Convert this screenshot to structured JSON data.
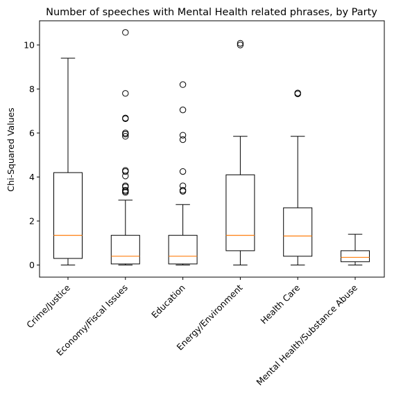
{
  "chart_data": {
    "type": "boxplot",
    "title": "Number of speeches with Mental Health related phrases, by Party",
    "xlabel": "",
    "ylabel": "Chi-Squared Values",
    "ylim": [
      -0.55,
      11.1
    ],
    "yticks": [
      0,
      2,
      4,
      6,
      8,
      10
    ],
    "grid": false,
    "legend": "none",
    "categories": [
      "Crime/Justice",
      "Economy/Fiscal Issues",
      "Education",
      "Energy/Environment",
      "Health Care",
      "Mental Health/Substance Abuse"
    ],
    "boxes": [
      {
        "category": "Crime/Justice",
        "whisker_low": 0.0,
        "q1": 0.3,
        "median": 1.35,
        "q3": 4.2,
        "whisker_high": 9.4,
        "outliers": []
      },
      {
        "category": "Economy/Fiscal Issues",
        "whisker_low": 0.0,
        "q1": 0.05,
        "median": 0.4,
        "q3": 1.35,
        "whisker_high": 2.95,
        "outliers": [
          3.3,
          3.35,
          3.4,
          3.55,
          3.6,
          4.05,
          4.25,
          4.3,
          5.85,
          5.95,
          6.0,
          6.65,
          6.68,
          7.8,
          10.57
        ]
      },
      {
        "category": "Education",
        "whisker_low": 0.0,
        "q1": 0.05,
        "median": 0.4,
        "q3": 1.35,
        "whisker_high": 2.75,
        "outliers": [
          3.35,
          3.4,
          3.6,
          4.25,
          5.7,
          5.9,
          7.05,
          8.2
        ]
      },
      {
        "category": "Energy/Environment",
        "whisker_low": 0.0,
        "q1": 0.65,
        "median": 1.35,
        "q3": 4.1,
        "whisker_high": 5.85,
        "outliers": [
          10.0,
          10.08
        ]
      },
      {
        "category": "Health Care",
        "whisker_low": 0.0,
        "q1": 0.4,
        "median": 1.32,
        "q3": 2.6,
        "whisker_high": 5.85,
        "outliers": [
          7.78,
          7.82
        ]
      },
      {
        "category": "Mental Health/Substance Abuse",
        "whisker_low": 0.0,
        "q1": 0.15,
        "median": 0.35,
        "q3": 0.65,
        "whisker_high": 1.4,
        "outliers": []
      }
    ],
    "colors": {
      "box": "#000000",
      "median": "#ff7f0e",
      "outlier": "#000000"
    }
  }
}
